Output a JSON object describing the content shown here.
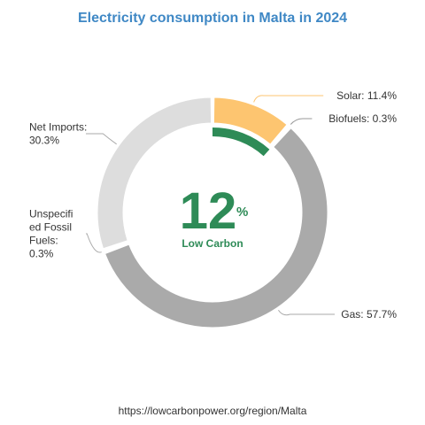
{
  "chart_data": {
    "type": "pie",
    "title": "Electricity consumption in Malta in 2024",
    "slices": [
      {
        "label": "Solar",
        "value": 11.4,
        "color": "#fdc570",
        "label_text": "Solar: 11.4%"
      },
      {
        "label": "Biofuels",
        "value": 0.3,
        "color": "#fdc570",
        "label_text": "Biofuels: 0.3%"
      },
      {
        "label": "Gas",
        "value": 57.7,
        "color": "#aaaaaa",
        "label_text": "Gas: 57.7%"
      },
      {
        "label": "Unspecified Fossil Fuels",
        "value": 0.3,
        "color": "#aaaaaa",
        "label_lines": [
          "Unspecifi",
          "ed Fossil",
          "Fuels:",
          "0.3%"
        ]
      },
      {
        "label": "Net Imports",
        "value": 30.3,
        "color": "#dddddd",
        "label_lines": [
          "Net Imports:",
          "30.3%"
        ]
      }
    ],
    "center": {
      "value": "12",
      "unit": "%",
      "label": "Low Carbon",
      "low_carbon_share": 11.7
    },
    "source": "https://lowcarbonpower.org/region/Malta"
  },
  "colors": {
    "title": "#3f88c5",
    "low_carbon": "#2e8b57",
    "leader": "#cccccc"
  }
}
